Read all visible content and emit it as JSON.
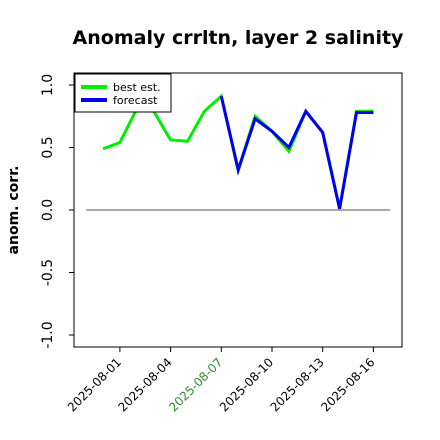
{
  "chart_data": {
    "type": "line",
    "title": "Anomaly crrltn, layer 2 salinity",
    "ylabel": "anom. corr.",
    "xlabel": "",
    "ylim": [
      -1.0,
      1.0
    ],
    "yticks": [
      "-1.0",
      "-0.5",
      "0.0",
      "0.5",
      "1.0"
    ],
    "xticks": [
      {
        "label": "2025-08-01",
        "color": "#000000"
      },
      {
        "label": "2025-08-04",
        "color": "#000000"
      },
      {
        "label": "2025-08-07",
        "color": "#2e8b2e"
      },
      {
        "label": "2025-08-10",
        "color": "#000000"
      },
      {
        "label": "2025-08-13",
        "color": "#000000"
      },
      {
        "label": "2025-08-16",
        "color": "#000000"
      }
    ],
    "zero_line": true,
    "legend_position": "top-left",
    "x": [
      "2025-07-31",
      "2025-08-01",
      "2025-08-02",
      "2025-08-03",
      "2025-08-04",
      "2025-08-05",
      "2025-08-06",
      "2025-08-07",
      "2025-08-08",
      "2025-08-09",
      "2025-08-10",
      "2025-08-11",
      "2025-08-12",
      "2025-08-13",
      "2025-08-14",
      "2025-08-15",
      "2025-08-16"
    ],
    "series": [
      {
        "name": "best est.",
        "color": "#00ee00",
        "values": [
          0.49,
          0.54,
          0.81,
          0.79,
          0.56,
          0.55,
          0.79,
          0.91,
          0.32,
          0.75,
          0.63,
          0.47,
          0.79,
          0.62,
          0.01,
          0.79,
          0.79
        ]
      },
      {
        "name": "forecast",
        "color": "#0000ee",
        "values": [
          null,
          null,
          null,
          null,
          null,
          null,
          null,
          0.91,
          0.32,
          0.73,
          0.63,
          0.5,
          0.79,
          0.62,
          0.01,
          0.78,
          0.78
        ]
      }
    ]
  }
}
